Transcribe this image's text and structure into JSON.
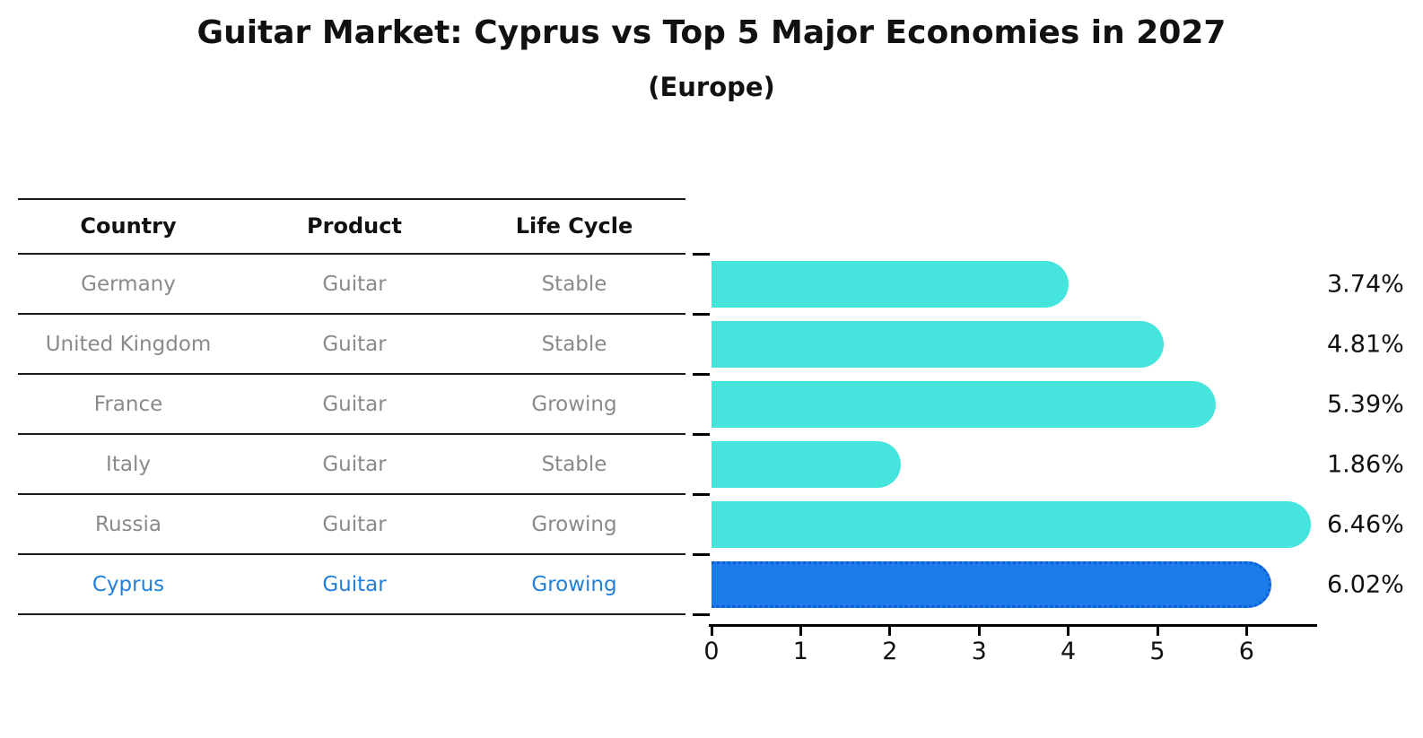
{
  "title": "Guitar Market: Cyprus vs Top 5 Major Economies in 2027",
  "subtitle": "(Europe)",
  "table": {
    "headers": [
      "Country",
      "Product",
      "Life Cycle"
    ],
    "rows": [
      {
        "country": "Germany",
        "product": "Guitar",
        "life_cycle": "Stable",
        "highlighted": false
      },
      {
        "country": "United Kingdom",
        "product": "Guitar",
        "life_cycle": "Stable",
        "highlighted": false
      },
      {
        "country": "France",
        "product": "Guitar",
        "life_cycle": "Growing",
        "highlighted": false
      },
      {
        "country": "Italy",
        "product": "Guitar",
        "life_cycle": "Stable",
        "highlighted": false
      },
      {
        "country": "Russia",
        "product": "Guitar",
        "life_cycle": "Growing",
        "highlighted": false
      },
      {
        "country": "Cyprus",
        "product": "Guitar",
        "life_cycle": "Growing",
        "highlighted": true
      }
    ]
  },
  "chart_data": {
    "type": "bar",
    "orientation": "horizontal",
    "title": "Guitar Market: Cyprus vs Top 5 Major Economies in 2027",
    "subtitle": "(Europe)",
    "categories": [
      "Germany",
      "United Kingdom",
      "France",
      "Italy",
      "Russia",
      "Cyprus"
    ],
    "values": [
      3.74,
      4.81,
      5.39,
      1.86,
      6.46,
      6.02
    ],
    "value_labels": [
      "3.74%",
      "4.81%",
      "5.39%",
      "1.86%",
      "6.46%",
      "6.02%"
    ],
    "highlight_index": 5,
    "x_ticks": [
      0,
      1,
      2,
      3,
      4,
      5,
      6
    ],
    "xlim": [
      0,
      6.8
    ],
    "grid": false,
    "legend": "none",
    "colors": {
      "default_bar": "#45E5DE",
      "highlight_bar": "#1B7BE8",
      "highlight_border": "#0d5ed2",
      "highlight_text": "#2380D8",
      "row_text": "#8a8a8a",
      "header_text": "#111111",
      "axis": "#000000",
      "background": "#ffffff"
    }
  }
}
